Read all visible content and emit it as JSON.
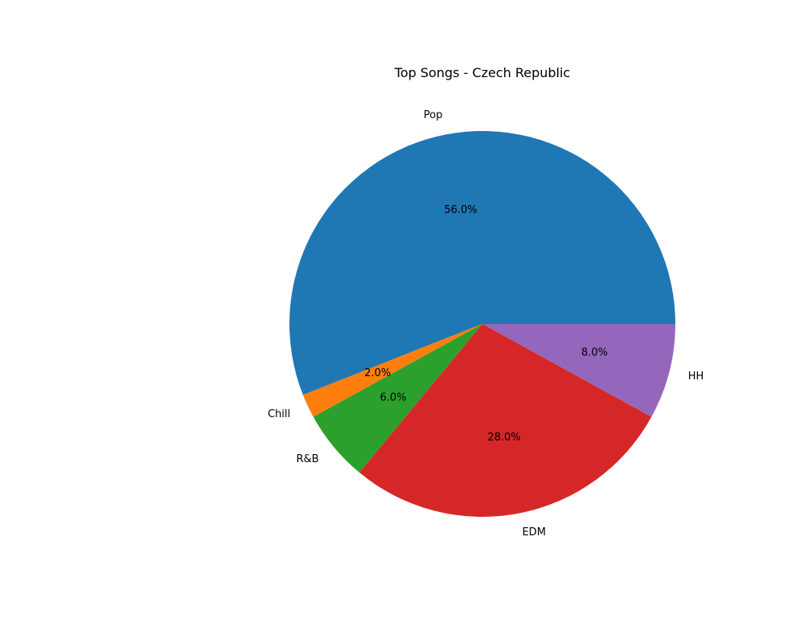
{
  "chart_data": {
    "type": "pie",
    "title": "Top Songs - Czech Republic",
    "categories": [
      "Pop",
      "Chill",
      "R&B",
      "EDM",
      "HH"
    ],
    "values": [
      56.0,
      2.0,
      6.0,
      28.0,
      8.0
    ],
    "percent_labels": [
      "56.0%",
      "2.0%",
      "6.0%",
      "28.0%",
      "8.0%"
    ],
    "colors": [
      "#1f77b4",
      "#ff7f0e",
      "#2ca02c",
      "#d62728",
      "#9467bd"
    ],
    "start_angle_deg": 0,
    "direction": "counterclockwise",
    "legend": "none"
  }
}
